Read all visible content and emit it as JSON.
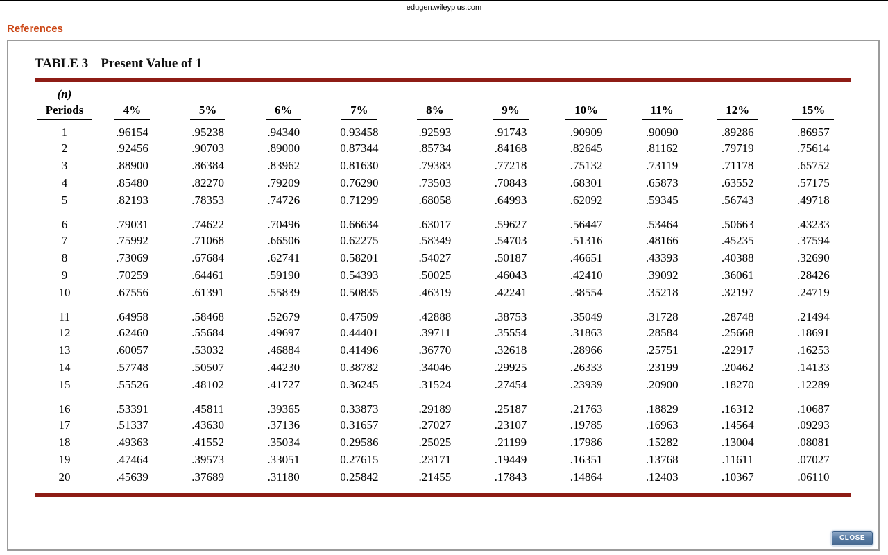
{
  "browser": {
    "address": "edugen.wileyplus.com"
  },
  "page": {
    "references_label": "References",
    "close_button": "CLOSE"
  },
  "colors": {
    "rule_red": "#8e1c15",
    "references_orange": "#cc4817"
  },
  "table": {
    "label": "TABLE 3",
    "title": "Present Value of 1",
    "period_header_line1": "(n)",
    "period_header_line2": "Periods",
    "rate_headers": [
      "4%",
      "5%",
      "6%",
      "7%",
      "8%",
      "9%",
      "10%",
      "11%",
      "12%",
      "15%"
    ],
    "rows": [
      {
        "period": "1",
        "values": [
          ".96154",
          ".95238",
          ".94340",
          "0.93458",
          ".92593",
          ".91743",
          ".90909",
          ".90090",
          ".89286",
          ".86957"
        ]
      },
      {
        "period": "2",
        "values": [
          ".92456",
          ".90703",
          ".89000",
          "0.87344",
          ".85734",
          ".84168",
          ".82645",
          ".81162",
          ".79719",
          ".75614"
        ]
      },
      {
        "period": "3",
        "values": [
          ".88900",
          ".86384",
          ".83962",
          "0.81630",
          ".79383",
          ".77218",
          ".75132",
          ".73119",
          ".71178",
          ".65752"
        ]
      },
      {
        "period": "4",
        "values": [
          ".85480",
          ".82270",
          ".79209",
          "0.76290",
          ".73503",
          ".70843",
          ".68301",
          ".65873",
          ".63552",
          ".57175"
        ]
      },
      {
        "period": "5",
        "values": [
          ".82193",
          ".78353",
          ".74726",
          "0.71299",
          ".68058",
          ".64993",
          ".62092",
          ".59345",
          ".56743",
          ".49718"
        ]
      },
      {
        "period": "6",
        "values": [
          ".79031",
          ".74622",
          ".70496",
          "0.66634",
          ".63017",
          ".59627",
          ".56447",
          ".53464",
          ".50663",
          ".43233"
        ]
      },
      {
        "period": "7",
        "values": [
          ".75992",
          ".71068",
          ".66506",
          "0.62275",
          ".58349",
          ".54703",
          ".51316",
          ".48166",
          ".45235",
          ".37594"
        ]
      },
      {
        "period": "8",
        "values": [
          ".73069",
          ".67684",
          ".62741",
          "0.58201",
          ".54027",
          ".50187",
          ".46651",
          ".43393",
          ".40388",
          ".32690"
        ]
      },
      {
        "period": "9",
        "values": [
          ".70259",
          ".64461",
          ".59190",
          "0.54393",
          ".50025",
          ".46043",
          ".42410",
          ".39092",
          ".36061",
          ".28426"
        ]
      },
      {
        "period": "10",
        "values": [
          ".67556",
          ".61391",
          ".55839",
          "0.50835",
          ".46319",
          ".42241",
          ".38554",
          ".35218",
          ".32197",
          ".24719"
        ]
      },
      {
        "period": "11",
        "values": [
          ".64958",
          ".58468",
          ".52679",
          "0.47509",
          ".42888",
          ".38753",
          ".35049",
          ".31728",
          ".28748",
          ".21494"
        ]
      },
      {
        "period": "12",
        "values": [
          ".62460",
          ".55684",
          ".49697",
          "0.44401",
          ".39711",
          ".35554",
          ".31863",
          ".28584",
          ".25668",
          ".18691"
        ]
      },
      {
        "period": "13",
        "values": [
          ".60057",
          ".53032",
          ".46884",
          "0.41496",
          ".36770",
          ".32618",
          ".28966",
          ".25751",
          ".22917",
          ".16253"
        ]
      },
      {
        "period": "14",
        "values": [
          ".57748",
          ".50507",
          ".44230",
          "0.38782",
          ".34046",
          ".29925",
          ".26333",
          ".23199",
          ".20462",
          ".14133"
        ]
      },
      {
        "period": "15",
        "values": [
          ".55526",
          ".48102",
          ".41727",
          "0.36245",
          ".31524",
          ".27454",
          ".23939",
          ".20900",
          ".18270",
          ".12289"
        ]
      },
      {
        "period": "16",
        "values": [
          ".53391",
          ".45811",
          ".39365",
          "0.33873",
          ".29189",
          ".25187",
          ".21763",
          ".18829",
          ".16312",
          ".10687"
        ]
      },
      {
        "period": "17",
        "values": [
          ".51337",
          ".43630",
          ".37136",
          "0.31657",
          ".27027",
          ".23107",
          ".19785",
          ".16963",
          ".14564",
          ".09293"
        ]
      },
      {
        "period": "18",
        "values": [
          ".49363",
          ".41552",
          ".35034",
          "0.29586",
          ".25025",
          ".21199",
          ".17986",
          ".15282",
          ".13004",
          ".08081"
        ]
      },
      {
        "period": "19",
        "values": [
          ".47464",
          ".39573",
          ".33051",
          "0.27615",
          ".23171",
          ".19449",
          ".16351",
          ".13768",
          ".11611",
          ".07027"
        ]
      },
      {
        "period": "20",
        "values": [
          ".45639",
          ".37689",
          ".31180",
          "0.25842",
          ".21455",
          ".17843",
          ".14864",
          ".12403",
          ".10367",
          ".06110"
        ]
      }
    ]
  }
}
